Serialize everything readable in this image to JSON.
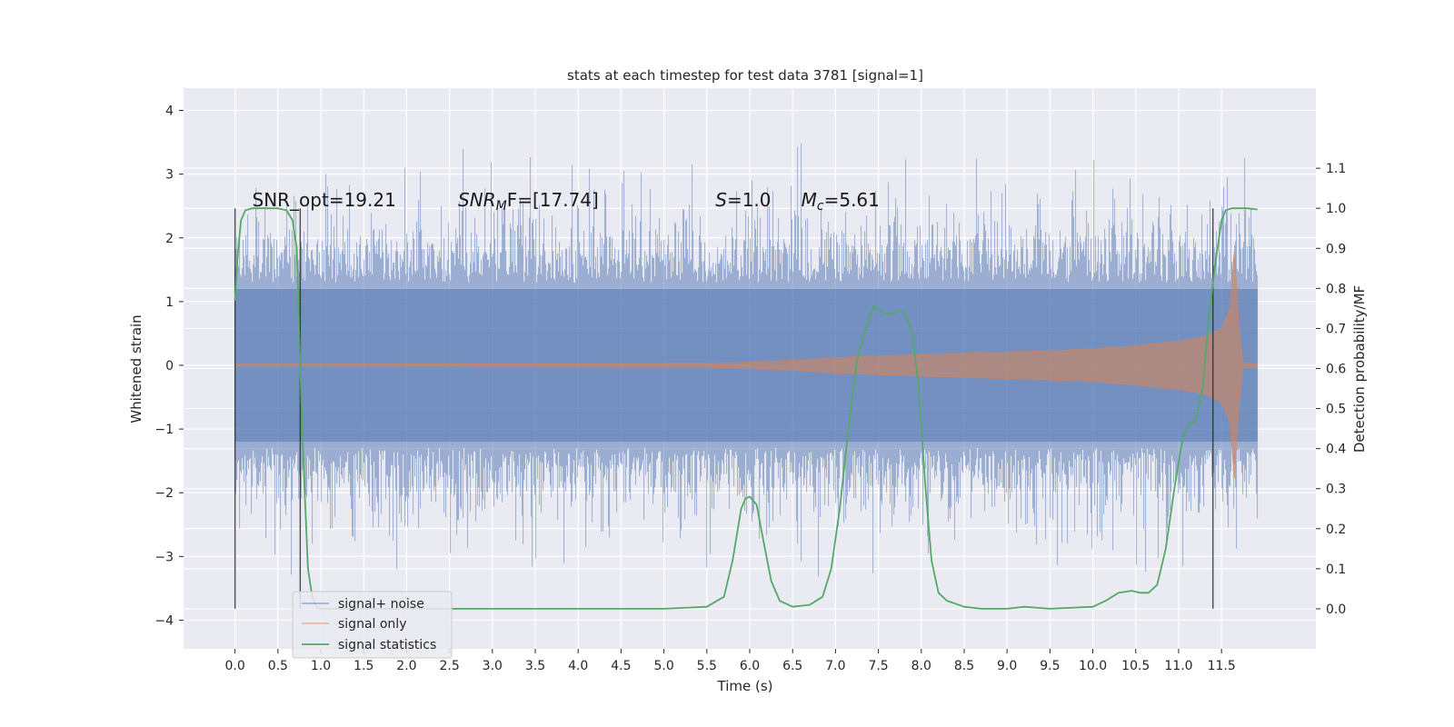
{
  "chart_data": {
    "type": "line",
    "title": "stats at each timestep for test data 3781 [signal=1]",
    "xlabel": "Time (s)",
    "ylabel": "Whitened strain",
    "y2label": "Detection probability/MF",
    "xlim": [
      -0.6,
      12.6
    ],
    "ylim": [
      -4.45,
      4.35
    ],
    "y2lim": [
      -0.1,
      1.3
    ],
    "x_ticks": [
      "0.0",
      "0.5",
      "1.0",
      "1.5",
      "2.0",
      "2.5",
      "3.0",
      "3.5",
      "4.0",
      "4.5",
      "5.0",
      "5.5",
      "6.0",
      "6.5",
      "7.0",
      "7.5",
      "8.0",
      "8.5",
      "9.0",
      "9.5",
      "10.0",
      "10.5",
      "11.0",
      "11.5"
    ],
    "y_ticks": [
      "−4",
      "−3",
      "−2",
      "−1",
      "0",
      "1",
      "2",
      "3",
      "4"
    ],
    "y2_ticks": [
      "0.0",
      "0.1",
      "0.2",
      "0.3",
      "0.4",
      "0.5",
      "0.6",
      "0.7",
      "0.8",
      "0.9",
      "1.0",
      "1.1"
    ],
    "grid": true,
    "legend": "lower-left",
    "annotations": [
      {
        "text": "SNR_opt=19.21",
        "x": 0.2,
        "y2": 1.0
      },
      {
        "text_main": "SNR",
        "text_sub": "M",
        "text_rest": "F=[17.74]",
        "x": 2.6,
        "y2": 1.0
      },
      {
        "text_main": "S",
        "text_rest": "=1.0",
        "x": 5.6,
        "y2": 1.0
      },
      {
        "text_main": "M",
        "text_sub": "c",
        "text_rest": "=5.61",
        "x": 6.6,
        "y2": 1.0
      }
    ],
    "vlines": [
      {
        "x": 0.0,
        "y2_range": [
          0.0,
          1.0
        ]
      },
      {
        "x": 0.76,
        "y2_range": [
          0.0,
          1.0
        ]
      },
      {
        "x": 11.4,
        "y2_range": [
          0.0,
          1.0
        ]
      }
    ],
    "noise_envelope": {
      "t_start": 0.0,
      "t_end": 11.92,
      "typical_abs": 1.6,
      "peak_abs": 3.95
    },
    "signal_envelope": {
      "t": [
        0.0,
        5.5,
        6.0,
        6.5,
        7.0,
        7.5,
        8.0,
        8.5,
        9.0,
        9.5,
        10.0,
        10.5,
        11.0,
        11.3,
        11.5,
        11.6,
        11.65,
        11.7,
        11.75,
        11.92
      ],
      "amp": [
        0.02,
        0.03,
        0.05,
        0.08,
        0.12,
        0.15,
        0.17,
        0.19,
        0.21,
        0.23,
        0.26,
        0.31,
        0.38,
        0.45,
        0.58,
        0.9,
        1.85,
        0.7,
        0.05,
        0.02
      ]
    },
    "series": [
      {
        "name": "signal+ noise",
        "color": "#4c72b0"
      },
      {
        "name": "signal only",
        "color": "#dd8452"
      },
      {
        "name": "signal statistics",
        "color": "#55a868",
        "x": [
          0.0,
          0.03,
          0.07,
          0.12,
          0.2,
          0.35,
          0.5,
          0.6,
          0.67,
          0.72,
          0.76,
          0.8,
          0.85,
          0.9,
          0.95,
          1.0,
          1.5,
          3.0,
          5.0,
          5.5,
          5.7,
          5.8,
          5.9,
          5.95,
          6.0,
          6.08,
          6.15,
          6.25,
          6.35,
          6.5,
          6.7,
          6.85,
          6.95,
          7.05,
          7.15,
          7.25,
          7.35,
          7.45,
          7.55,
          7.65,
          7.75,
          7.82,
          7.9,
          7.97,
          8.05,
          8.12,
          8.2,
          8.3,
          8.5,
          8.7,
          9.0,
          9.2,
          9.5,
          10.0,
          10.15,
          10.3,
          10.45,
          10.55,
          10.65,
          10.75,
          10.85,
          10.95,
          11.05,
          11.12,
          11.2,
          11.28,
          11.35,
          11.42,
          11.5,
          11.55,
          11.62,
          11.7,
          11.8,
          11.92
        ],
        "y": [
          0.77,
          0.88,
          0.97,
          0.995,
          1.0,
          1.0,
          1.0,
          0.995,
          0.97,
          0.9,
          0.6,
          0.35,
          0.1,
          0.03,
          0.005,
          0.0,
          0.0,
          0.0,
          0.0,
          0.005,
          0.03,
          0.12,
          0.25,
          0.275,
          0.28,
          0.26,
          0.18,
          0.07,
          0.02,
          0.005,
          0.01,
          0.03,
          0.1,
          0.25,
          0.45,
          0.62,
          0.7,
          0.755,
          0.74,
          0.735,
          0.745,
          0.735,
          0.68,
          0.55,
          0.3,
          0.12,
          0.04,
          0.02,
          0.005,
          0.0,
          0.0,
          0.005,
          0.0,
          0.005,
          0.02,
          0.04,
          0.045,
          0.04,
          0.04,
          0.06,
          0.15,
          0.3,
          0.43,
          0.46,
          0.47,
          0.55,
          0.72,
          0.85,
          0.97,
          0.995,
          1.0,
          1.0,
          1.0,
          0.997
        ]
      }
    ]
  }
}
